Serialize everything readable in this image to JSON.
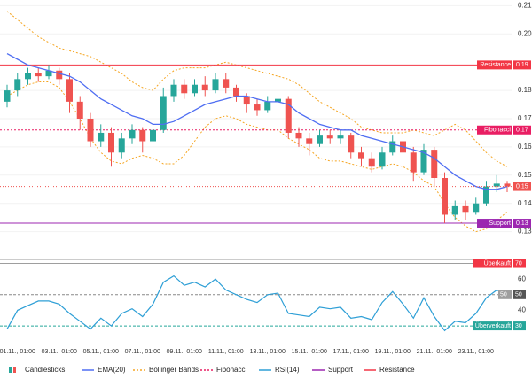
{
  "chart_data": {
    "type": "candlestick",
    "categories": [
      null,
      "01.11., 01:00",
      null,
      null,
      null,
      "03.11., 01:00",
      null,
      null,
      null,
      "05.11., 01:00",
      null,
      null,
      null,
      "07.11., 01:00",
      null,
      null,
      null,
      "09.11., 01:00",
      null,
      null,
      null,
      "11.11., 01:00",
      null,
      null,
      null,
      "13.11., 01:00",
      null,
      null,
      null,
      "15.11., 01:00",
      null,
      null,
      null,
      "17.11., 01:00",
      null,
      null,
      null,
      "19.11., 01:00",
      null,
      null,
      null,
      "21.11., 01:00",
      null,
      null,
      null,
      "23.11., 01:00",
      null,
      null,
      null
    ],
    "ylim": [
      0.128,
      0.212
    ],
    "yticks": [
      0.13,
      0.14,
      0.15,
      0.16,
      0.17,
      0.18,
      {
        "value": 0.2,
        "label": "0.20"
      },
      0.21
    ],
    "candles": {
      "name": "Candlesticks",
      "up_color": "#26a69a",
      "down_color": "#ef5350",
      "last_label": "0.15",
      "open": [
        0.176,
        0.18,
        0.184,
        0.186,
        0.185,
        0.187,
        0.184,
        0.176,
        0.17,
        0.162,
        0.165,
        0.158,
        0.163,
        0.166,
        0.162,
        0.166,
        0.178,
        0.182,
        0.179,
        0.182,
        0.18,
        0.184,
        0.181,
        0.178,
        0.175,
        0.173,
        0.176,
        0.177,
        0.165,
        0.163,
        0.161,
        0.164,
        0.163,
        0.164,
        0.158,
        0.156,
        0.153,
        0.158,
        0.162,
        0.158,
        0.151,
        0.159,
        0.149,
        0.136,
        0.139,
        0.137,
        0.14,
        0.146,
        0.147
      ],
      "high": [
        0.182,
        0.186,
        0.188,
        0.188,
        0.189,
        0.188,
        0.186,
        0.178,
        0.172,
        0.168,
        0.167,
        0.165,
        0.168,
        0.167,
        0.168,
        0.181,
        0.184,
        0.184,
        0.184,
        0.185,
        0.186,
        0.186,
        0.182,
        0.179,
        0.177,
        0.178,
        0.179,
        0.178,
        0.167,
        0.165,
        0.166,
        0.166,
        0.166,
        0.165,
        0.16,
        0.158,
        0.16,
        0.164,
        0.163,
        0.16,
        0.161,
        0.16,
        0.151,
        0.141,
        0.141,
        0.142,
        0.148,
        0.15,
        0.148
      ],
      "low": [
        0.174,
        0.178,
        0.182,
        0.183,
        0.184,
        0.182,
        0.172,
        0.166,
        0.16,
        0.16,
        0.153,
        0.156,
        0.161,
        0.158,
        0.16,
        0.165,
        0.176,
        0.177,
        0.178,
        0.178,
        0.179,
        0.179,
        0.176,
        0.172,
        0.171,
        0.172,
        0.175,
        0.163,
        0.16,
        0.157,
        0.16,
        0.161,
        0.161,
        0.156,
        0.153,
        0.151,
        0.152,
        0.157,
        0.156,
        0.148,
        0.15,
        0.146,
        0.133,
        0.134,
        0.134,
        0.136,
        0.139,
        0.144,
        0.144
      ],
      "close": [
        0.18,
        0.184,
        0.186,
        0.185,
        0.187,
        0.184,
        0.176,
        0.17,
        0.162,
        0.165,
        0.158,
        0.163,
        0.166,
        0.162,
        0.166,
        0.178,
        0.182,
        0.179,
        0.182,
        0.18,
        0.184,
        0.181,
        0.178,
        0.175,
        0.173,
        0.176,
        0.177,
        0.165,
        0.163,
        0.161,
        0.164,
        0.163,
        0.164,
        0.158,
        0.156,
        0.153,
        0.158,
        0.162,
        0.158,
        0.151,
        0.159,
        0.149,
        0.136,
        0.139,
        0.137,
        0.14,
        0.146,
        0.147,
        0.146
      ]
    },
    "series": [
      {
        "name": "EMA(20)",
        "color": "#4f6ef2",
        "values": [
          0.193,
          0.191,
          0.189,
          0.188,
          0.187,
          0.186,
          0.185,
          0.183,
          0.18,
          0.177,
          0.175,
          0.173,
          0.171,
          0.17,
          0.168,
          0.168,
          0.169,
          0.171,
          0.173,
          0.175,
          0.176,
          0.177,
          0.178,
          0.178,
          0.177,
          0.176,
          0.176,
          0.175,
          0.172,
          0.17,
          0.168,
          0.167,
          0.166,
          0.166,
          0.164,
          0.163,
          0.162,
          0.161,
          0.16,
          0.159,
          0.158,
          0.156,
          0.153,
          0.15,
          0.148,
          0.146,
          0.145,
          0.145,
          0.146
        ]
      },
      {
        "name": "Bollinger Bands",
        "color": "#f5a623",
        "upper": [
          0.208,
          0.205,
          0.202,
          0.199,
          0.197,
          0.195,
          0.194,
          0.193,
          0.192,
          0.19,
          0.188,
          0.186,
          0.183,
          0.181,
          0.18,
          0.184,
          0.187,
          0.188,
          0.188,
          0.188,
          0.189,
          0.19,
          0.189,
          0.188,
          0.187,
          0.186,
          0.185,
          0.184,
          0.182,
          0.179,
          0.176,
          0.174,
          0.172,
          0.17,
          0.167,
          0.166,
          0.165,
          0.165,
          0.165,
          0.166,
          0.165,
          0.164,
          0.166,
          0.168,
          0.166,
          0.162,
          0.158,
          0.155,
          0.153
        ],
        "lower": [
          0.178,
          0.18,
          0.182,
          0.183,
          0.183,
          0.181,
          0.176,
          0.17,
          0.163,
          0.158,
          0.155,
          0.154,
          0.156,
          0.157,
          0.156,
          0.154,
          0.154,
          0.157,
          0.162,
          0.167,
          0.17,
          0.171,
          0.17,
          0.168,
          0.167,
          0.166,
          0.166,
          0.163,
          0.161,
          0.159,
          0.156,
          0.155,
          0.155,
          0.154,
          0.153,
          0.152,
          0.153,
          0.154,
          0.153,
          0.151,
          0.148,
          0.146,
          0.14,
          0.135,
          0.132,
          0.13,
          0.131,
          0.134,
          0.137
        ]
      }
    ],
    "levels": [
      {
        "name": "Fibonacci",
        "value": 0.166,
        "value_label": "0.17",
        "color": "#e91e63",
        "dash": "2 2"
      },
      {
        "name": "Support",
        "value": 0.133,
        "value_label": "0.13",
        "color": "#9c27b0",
        "dash": ""
      },
      {
        "name": "Resistance",
        "value": 0.189,
        "value_label": "0.19",
        "color": "#f23645",
        "dash": ""
      }
    ],
    "rsi": {
      "name": "RSI(14)",
      "color": "#2e9fd6",
      "ylim": [
        17,
        72
      ],
      "yticks": [
        40,
        60
      ],
      "values": [
        28,
        40,
        43,
        46,
        46,
        44,
        38,
        33,
        28,
        35,
        30,
        38,
        41,
        36,
        44,
        58,
        62,
        56,
        58,
        55,
        60,
        53,
        50,
        47,
        45,
        50,
        51,
        38,
        37,
        36,
        42,
        41,
        42,
        35,
        36,
        34,
        45,
        52,
        44,
        35,
        48,
        36,
        27,
        33,
        32,
        38,
        48,
        53,
        50
      ],
      "levels": [
        {
          "label": "Überkauft",
          "value": 70,
          "color": "#f23645",
          "line": "#9e9e9e",
          "dash": ""
        },
        {
          "value": 50,
          "color": "#555555",
          "line": "#888888",
          "dash": "3 2"
        },
        {
          "label": "Überverkauft",
          "value": 30,
          "color": "#26a69a",
          "line": "#26a69a",
          "dash": "3 2"
        }
      ]
    }
  }
}
